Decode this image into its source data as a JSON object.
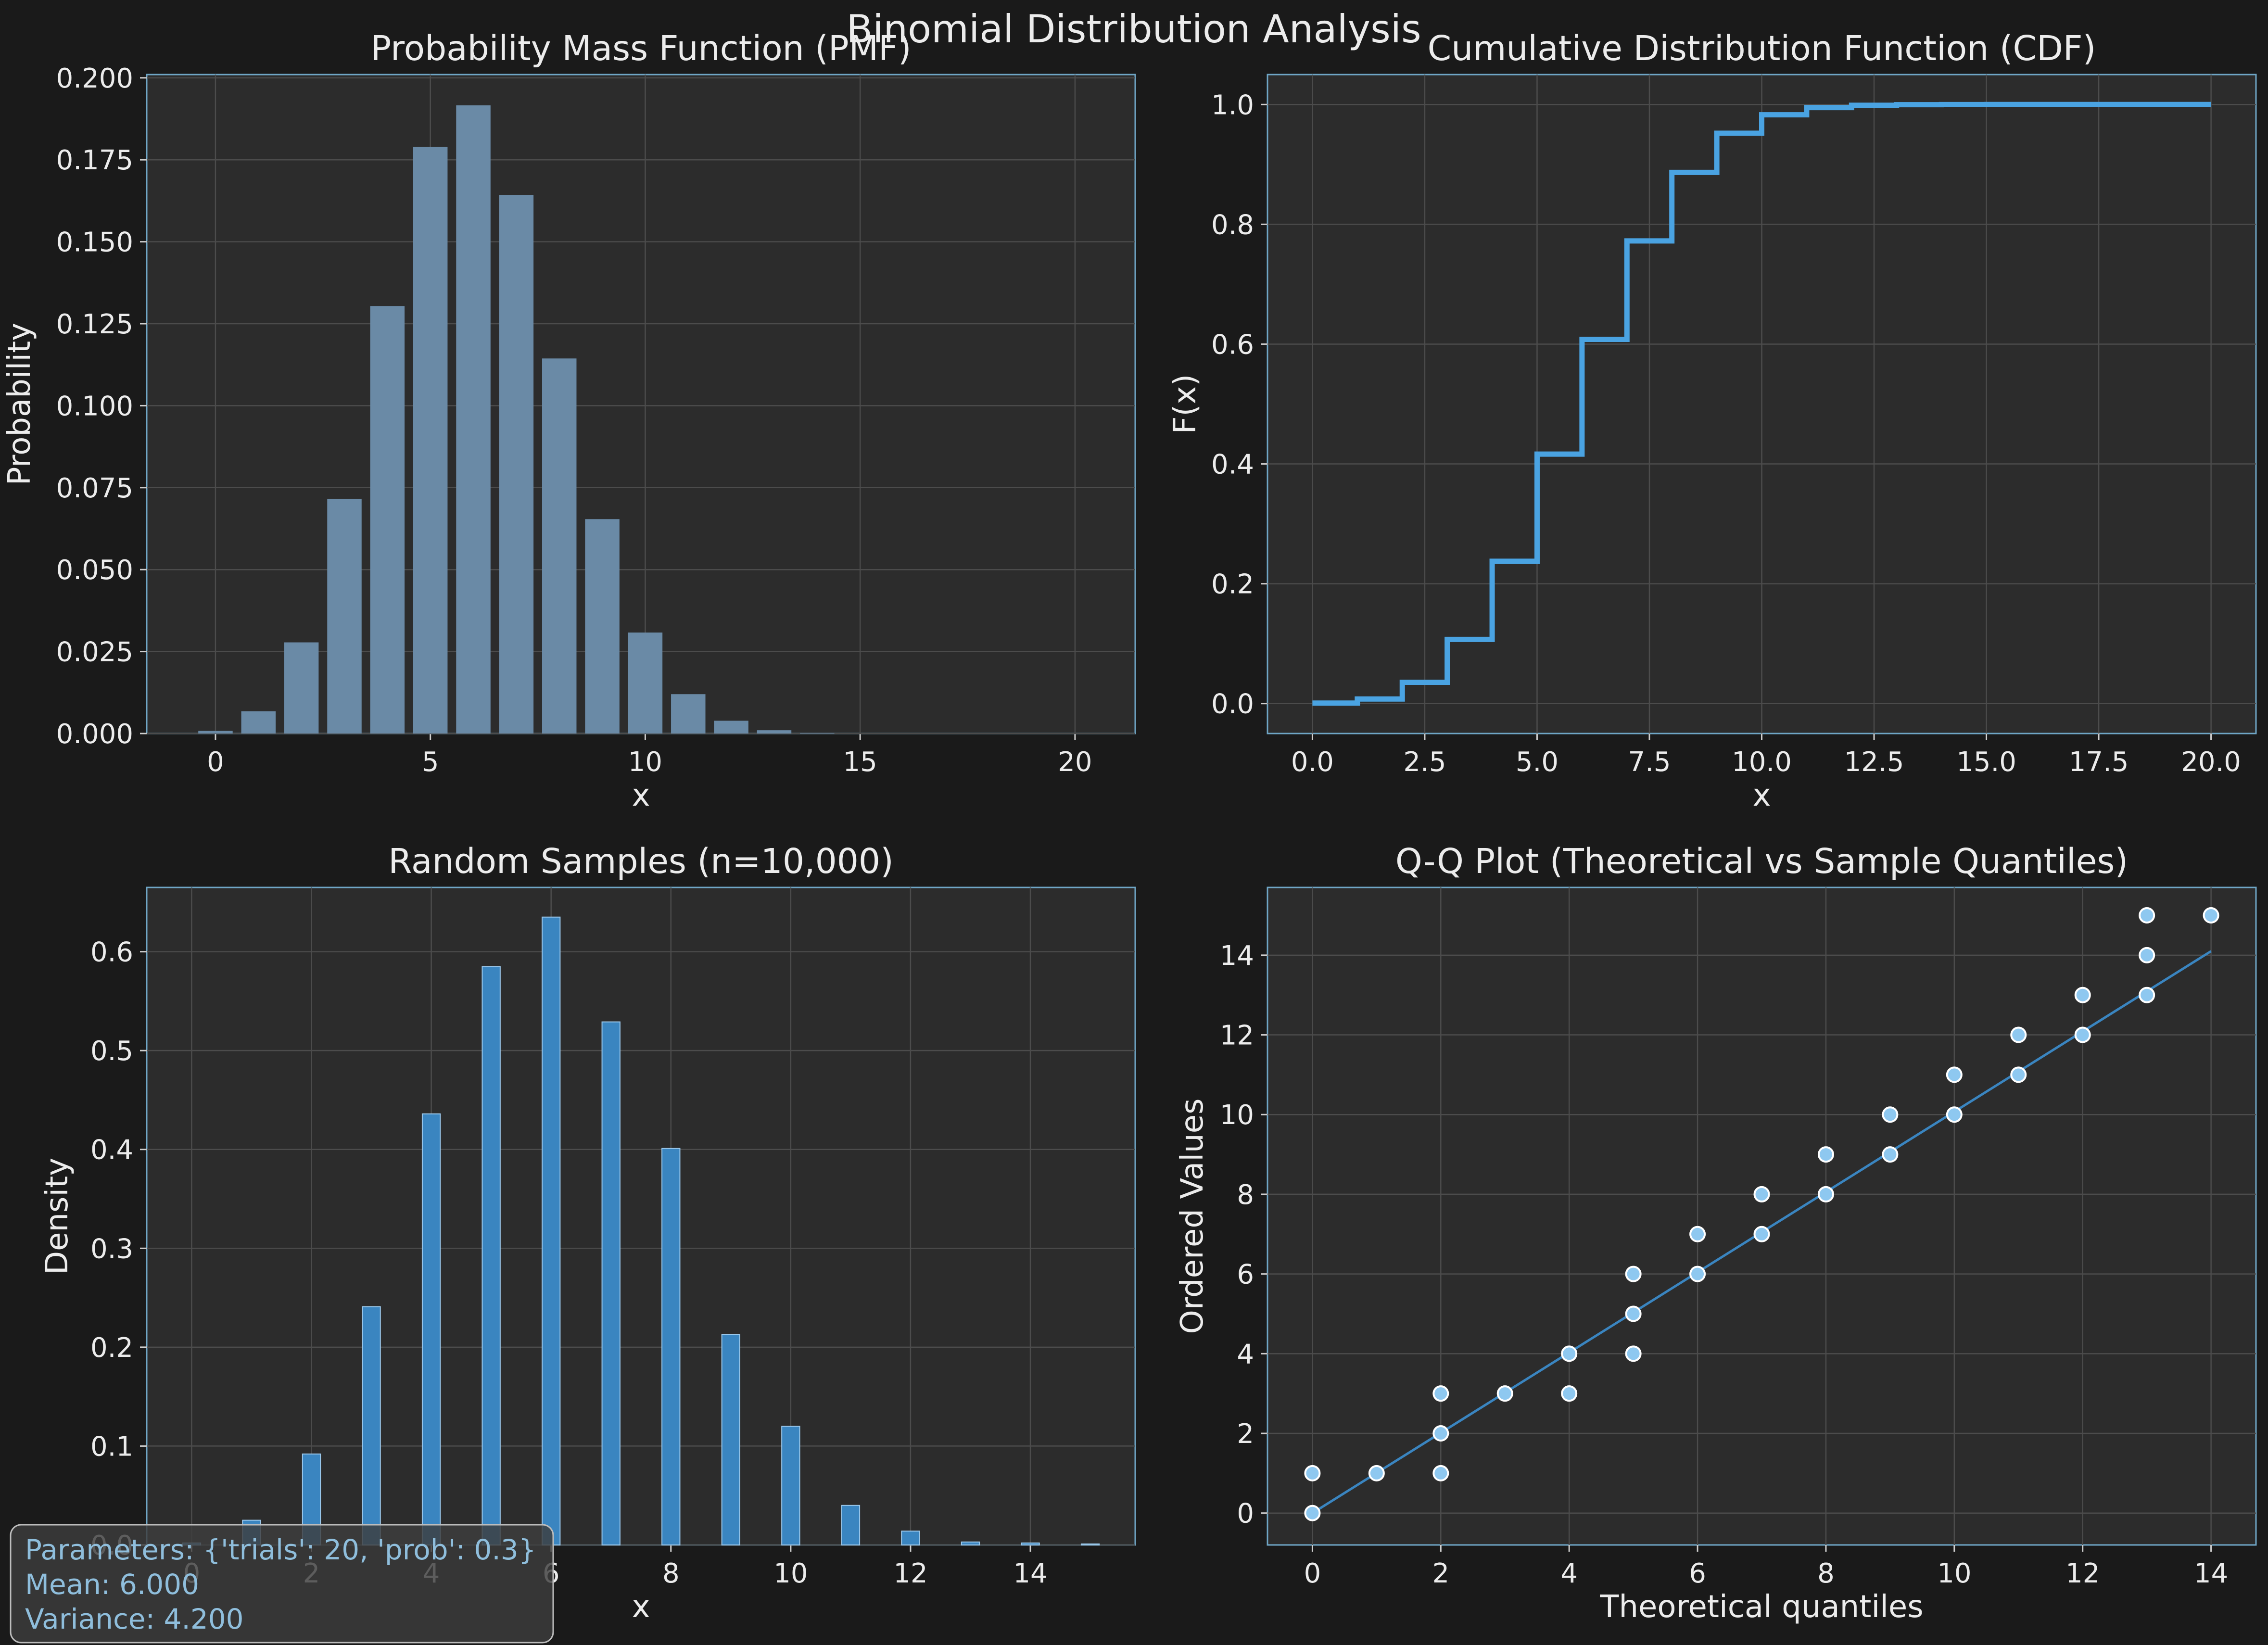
{
  "figure": {
    "title": "Binomial Distribution Analysis"
  },
  "chart_data": [
    {
      "id": "pmf",
      "type": "bar",
      "title": "Probability Mass Function (PMF)",
      "xlabel": "x",
      "ylabel": "Probability",
      "xlim": [
        -1.6,
        21.4
      ],
      "ylim": [
        0,
        0.201
      ],
      "xticks": [
        0,
        5,
        10,
        15,
        20
      ],
      "xtick_labels": [
        "0",
        "5",
        "10",
        "15",
        "20"
      ],
      "yticks": [
        0,
        0.025,
        0.05,
        0.075,
        0.1,
        0.125,
        0.15,
        0.175,
        0.2
      ],
      "ytick_labels": [
        "0.000",
        "0.025",
        "0.050",
        "0.075",
        "0.100",
        "0.125",
        "0.150",
        "0.175",
        "0.200"
      ],
      "grid": true,
      "bar_color": "#6a8aa6",
      "x": [
        0,
        1,
        2,
        3,
        4,
        5,
        6,
        7,
        8,
        9,
        10,
        11,
        12,
        13,
        14,
        15,
        16,
        17,
        18,
        19,
        20
      ],
      "values": [
        0.0008,
        0.0068,
        0.0278,
        0.0716,
        0.1304,
        0.1789,
        0.1916,
        0.1643,
        0.1144,
        0.0654,
        0.0308,
        0.012,
        0.0039,
        0.001,
        0.0002,
        0.0,
        0.0,
        0.0,
        0.0,
        0.0,
        0.0
      ]
    },
    {
      "id": "cdf",
      "type": "line",
      "title": "Cumulative Distribution Function (CDF)",
      "xlabel": "x",
      "ylabel": "F(x)",
      "xlim": [
        -1.0,
        21.0
      ],
      "ylim": [
        -0.05,
        1.05
      ],
      "xticks": [
        0,
        2.5,
        5,
        7.5,
        10,
        12.5,
        15,
        17.5,
        20
      ],
      "xtick_labels": [
        "0.0",
        "2.5",
        "5.0",
        "7.5",
        "10.0",
        "12.5",
        "15.0",
        "17.5",
        "20.0"
      ],
      "yticks": [
        0,
        0.2,
        0.4,
        0.6,
        0.8,
        1.0
      ],
      "ytick_labels": [
        "0.0",
        "0.2",
        "0.4",
        "0.6",
        "0.8",
        "1.0"
      ],
      "grid": true,
      "line_color": "#4aa3e2",
      "step": "post",
      "x": [
        0,
        1,
        2,
        3,
        4,
        5,
        6,
        7,
        8,
        9,
        10,
        11,
        12,
        13,
        14,
        15,
        16,
        17,
        18,
        19,
        20
      ],
      "values": [
        0.0008,
        0.0076,
        0.0355,
        0.1071,
        0.2375,
        0.4164,
        0.608,
        0.7723,
        0.8867,
        0.952,
        0.9829,
        0.9949,
        0.9987,
        0.9997,
        0.9999,
        1.0,
        1.0,
        1.0,
        1.0,
        1.0,
        1.0
      ]
    },
    {
      "id": "samples",
      "type": "bar",
      "title": "Random Samples (n=10,000)",
      "xlabel": "x",
      "ylabel": "Density",
      "xlim": [
        -0.75,
        15.75
      ],
      "ylim": [
        0,
        0.665
      ],
      "xticks": [
        0,
        2,
        4,
        6,
        8,
        10,
        12,
        14
      ],
      "xtick_labels": [
        "0",
        "2",
        "4",
        "6",
        "8",
        "10",
        "12",
        "14"
      ],
      "yticks": [
        0,
        0.1,
        0.2,
        0.3,
        0.4,
        0.5,
        0.6
      ],
      "ytick_labels": [
        "0.0",
        "0.1",
        "0.2",
        "0.3",
        "0.4",
        "0.5",
        "0.6"
      ],
      "grid": true,
      "bar_color": "#3a85c0",
      "bar_width": 0.3,
      "x": [
        0,
        1,
        2,
        3,
        4,
        5,
        6,
        7,
        8,
        9,
        10,
        11,
        12,
        13,
        14,
        15
      ],
      "values": [
        0.002,
        0.025,
        0.092,
        0.241,
        0.436,
        0.585,
        0.635,
        0.529,
        0.401,
        0.213,
        0.12,
        0.04,
        0.014,
        0.003,
        0.002,
        0.001
      ]
    },
    {
      "id": "qq",
      "type": "scatter",
      "title": "Q-Q Plot (Theoretical vs Sample Quantiles)",
      "xlabel": "Theoretical quantiles",
      "ylabel": "Ordered Values",
      "xlim": [
        -0.7,
        14.7
      ],
      "ylim": [
        -0.8,
        15.7
      ],
      "xticks": [
        0,
        2,
        4,
        6,
        8,
        10,
        12,
        14
      ],
      "xtick_labels": [
        "0",
        "2",
        "4",
        "6",
        "8",
        "10",
        "12",
        "14"
      ],
      "yticks": [
        0,
        2,
        4,
        6,
        8,
        10,
        12,
        14
      ],
      "ytick_labels": [
        "0",
        "2",
        "4",
        "6",
        "8",
        "10",
        "12",
        "14"
      ],
      "grid": true,
      "point_color": "#8ec8f0",
      "line_color": "#3a85c0",
      "points": [
        [
          0,
          0
        ],
        [
          0,
          1
        ],
        [
          1,
          1
        ],
        [
          2,
          1
        ],
        [
          2,
          2
        ],
        [
          2,
          3
        ],
        [
          3,
          3
        ],
        [
          4,
          3
        ],
        [
          4,
          4
        ],
        [
          5,
          4
        ],
        [
          5,
          5
        ],
        [
          5,
          6
        ],
        [
          6,
          6
        ],
        [
          6,
          7
        ],
        [
          7,
          7
        ],
        [
          7,
          8
        ],
        [
          8,
          8
        ],
        [
          8,
          9
        ],
        [
          9,
          9
        ],
        [
          9,
          10
        ],
        [
          10,
          10
        ],
        [
          10,
          11
        ],
        [
          11,
          11
        ],
        [
          11,
          12
        ],
        [
          12,
          12
        ],
        [
          12,
          13
        ],
        [
          13,
          13
        ],
        [
          13,
          14
        ],
        [
          13,
          15
        ],
        [
          14,
          15
        ]
      ],
      "fit_line": [
        [
          0,
          0
        ],
        [
          14,
          14.1
        ]
      ]
    }
  ],
  "info_box": {
    "line1": "Parameters: {'trials': 20, 'prob': 0.3}",
    "line2": "Mean: 6.000",
    "line3": "Variance: 4.200"
  }
}
